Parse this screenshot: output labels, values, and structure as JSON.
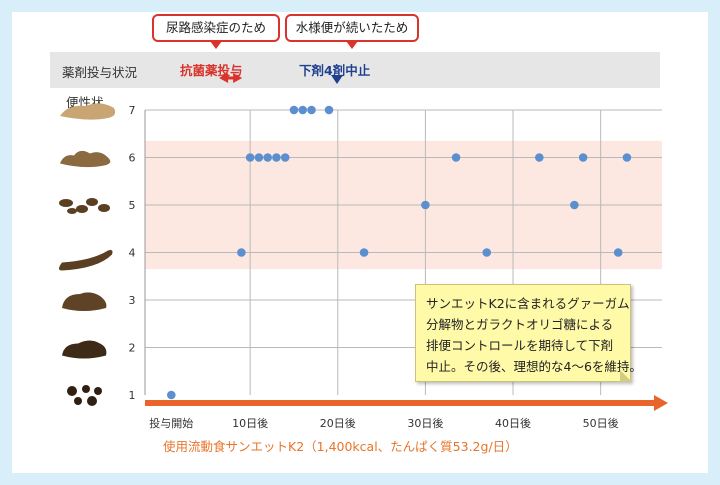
{
  "callouts": {
    "uti": "尿路感染症のため",
    "watery": "水様便が続いたため"
  },
  "medication": {
    "row_label": "薬剤投与状況",
    "antibiotic": "抗菌薬投与",
    "laxative_stop": "下剤4剤中止"
  },
  "note": {
    "lines": [
      "サンエットK2に含まれるグァーガム",
      "分解物とガラクトオリゴ糖による",
      "排便コントロールを期待して下剤",
      "中止。その後、理想的な4～6を維持。"
    ]
  },
  "footer": "使用流動食サンエットK2（1,400kcal、たんぱく質53.2g/日）",
  "colors": {
    "point": "#5b8fd0",
    "band": "#fce8e0",
    "arrow": "#e8642a",
    "stool": "#5a3f22"
  },
  "chart_data": {
    "type": "scatter",
    "ylabel": "便性状",
    "x_tick_labels": [
      "投与開始",
      "10日後",
      "20日後",
      "30日後",
      "40日後",
      "50日後"
    ],
    "x_ticks": [
      0,
      10,
      20,
      30,
      40,
      50
    ],
    "xlim": [
      -2,
      57
    ],
    "y_ticks": [
      1,
      2,
      3,
      4,
      5,
      6,
      7
    ],
    "ylim": [
      1,
      7
    ],
    "ideal_band": [
      4,
      6
    ],
    "grid": true,
    "points": [
      {
        "x": 1,
        "y": 1
      },
      {
        "x": 9,
        "y": 4
      },
      {
        "x": 10,
        "y": 6
      },
      {
        "x": 11,
        "y": 6
      },
      {
        "x": 12,
        "y": 6
      },
      {
        "x": 13,
        "y": 6
      },
      {
        "x": 14,
        "y": 6
      },
      {
        "x": 15,
        "y": 7
      },
      {
        "x": 16,
        "y": 7
      },
      {
        "x": 17,
        "y": 7
      },
      {
        "x": 19,
        "y": 7
      },
      {
        "x": 23,
        "y": 4
      },
      {
        "x": 30,
        "y": 5
      },
      {
        "x": 33.5,
        "y": 6
      },
      {
        "x": 37,
        "y": 4
      },
      {
        "x": 43,
        "y": 6
      },
      {
        "x": 47,
        "y": 5
      },
      {
        "x": 48,
        "y": 6
      },
      {
        "x": 52,
        "y": 4
      },
      {
        "x": 53,
        "y": 6
      }
    ],
    "antibiotic_period": [
      6,
      10
    ],
    "laxative_stop_day": 19
  }
}
